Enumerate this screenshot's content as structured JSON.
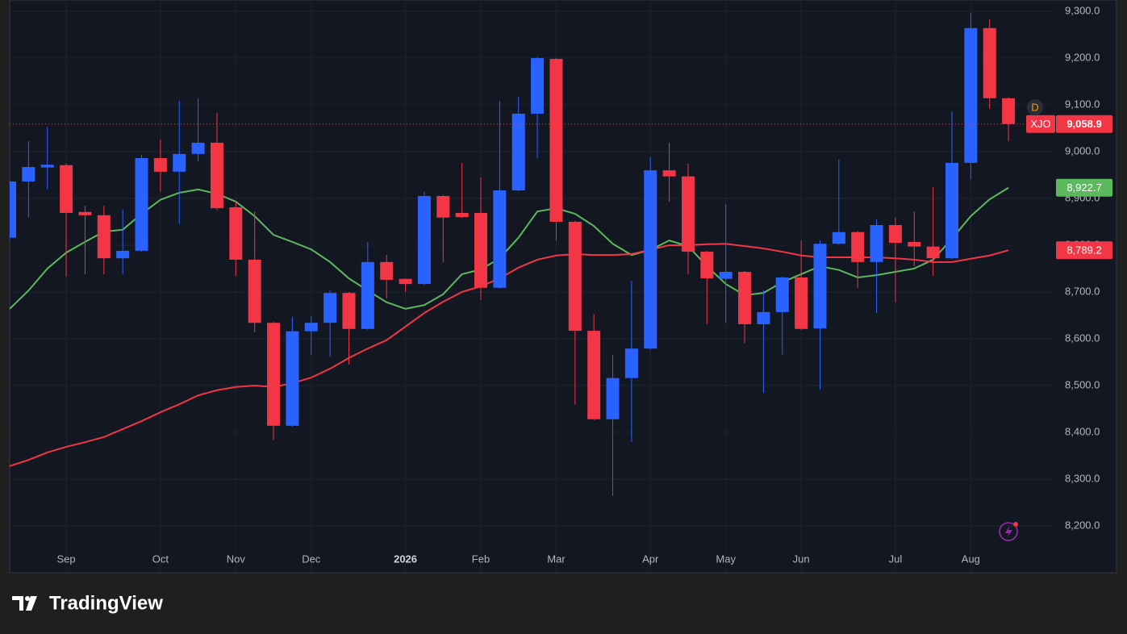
{
  "chart_data": {
    "type": "candlestick",
    "symbol": "XJO",
    "badge": "D",
    "watermark": "TradingView",
    "categories": [
      null,
      null,
      null,
      null,
      null,
      null,
      null,
      null,
      null,
      null,
      null,
      null,
      null,
      null,
      null,
      null,
      null,
      null,
      null,
      null,
      null,
      null,
      null,
      null,
      null,
      null,
      null,
      null,
      null,
      null,
      null,
      null,
      null,
      null,
      null,
      null,
      null,
      null,
      null,
      null,
      null,
      null,
      null,
      null,
      null,
      null,
      null,
      null,
      null,
      null,
      null,
      null,
      null,
      null
    ],
    "open": [
      8816,
      8936,
      8966,
      8971,
      8871,
      8864,
      8772,
      8788,
      8986,
      8957,
      8995,
      9019,
      8881,
      8769,
      8634,
      8414,
      8616,
      8634,
      8698,
      8621,
      8764,
      8728,
      8717,
      8905,
      8869,
      8869,
      8709,
      8917,
      9081,
      9198,
      8850,
      8617,
      8428,
      8516,
      8579,
      8960,
      8947,
      8786,
      8728,
      8743,
      8631,
      8657,
      8731,
      8622,
      8803,
      8828,
      8764,
      8843,
      8807,
      8797,
      8772,
      8976,
      9264,
      9114
    ],
    "high": [
      8940,
      9022,
      9053,
      8975,
      8884,
      8884,
      8876,
      8993,
      9026,
      9109,
      9114,
      9083,
      8893,
      8872,
      8636,
      8647,
      8648,
      8703,
      8700,
      8807,
      8779,
      8729,
      8914,
      8907,
      8976,
      8945,
      9109,
      9117,
      9202,
      9200,
      8852,
      8652,
      8566,
      8724,
      8988,
      9019,
      8974,
      8788,
      8888,
      8745,
      8703,
      8733,
      8810,
      8810,
      8983,
      8830,
      8855,
      8859,
      8872,
      8924,
      9086,
      9297,
      9283,
      9116
    ],
    "low": [
      8810,
      8859,
      8919,
      8733,
      8738,
      8738,
      8738,
      8786,
      8914,
      8845,
      8979,
      8875,
      8734,
      8614,
      8384,
      8412,
      8566,
      8562,
      8545,
      8619,
      8686,
      8700,
      8715,
      8764,
      8858,
      8683,
      8707,
      8915,
      8986,
      8810,
      8459,
      8426,
      8264,
      8379,
      8577,
      8893,
      8738,
      8631,
      8634,
      8591,
      8484,
      8566,
      8619,
      8491,
      8801,
      8709,
      8655,
      8678,
      8755,
      8734,
      8770,
      8941,
      9091,
      9022
    ],
    "close": [
      8936,
      8967,
      8972,
      8869,
      8864,
      8772,
      8788,
      8986,
      8957,
      8995,
      9019,
      8879,
      8769,
      8634,
      8414,
      8616,
      8634,
      8698,
      8621,
      8764,
      8726,
      8717,
      8905,
      8859,
      8860,
      8709,
      8917,
      9081,
      9200,
      8850,
      8617,
      8428,
      8516,
      8579,
      8960,
      8947,
      8786,
      8729,
      8743,
      8631,
      8657,
      8731,
      8621,
      8803,
      8828,
      8764,
      8843,
      8805,
      8797,
      8772,
      8976,
      9264,
      9114,
      9058.9
    ],
    "last_label": "9,058.9",
    "up_color": "#2962ff",
    "down_color": "#f23645",
    "lines": [
      {
        "color": "#5cb85c",
        "last_label": "8,922.7",
        "values": [
          8664,
          8703,
          8750,
          8784,
          8807,
          8829,
          8833,
          8867,
          8897,
          8912,
          8919,
          8910,
          8893,
          8862,
          8822,
          8807,
          8791,
          8764,
          8729,
          8703,
          8678,
          8664,
          8672,
          8695,
          8738,
          8748,
          8772,
          8816,
          8872,
          8879,
          8867,
          8841,
          8803,
          8779,
          8790,
          8810,
          8798,
          8755,
          8717,
          8693,
          8698,
          8721,
          8738,
          8755,
          8747,
          8731,
          8736,
          8743,
          8750,
          8769,
          8814,
          8862,
          8898,
          8922.7
        ]
      },
      {
        "color": "#f23645",
        "last_label": "8,789.2",
        "values": [
          8328,
          8341,
          8357,
          8369,
          8379,
          8390,
          8407,
          8424,
          8443,
          8460,
          8479,
          8490,
          8497,
          8500,
          8497,
          8505,
          8517,
          8536,
          8559,
          8579,
          8597,
          8626,
          8655,
          8679,
          8700,
          8712,
          8729,
          8752,
          8769,
          8778,
          8781,
          8779,
          8779,
          8781,
          8790,
          8800,
          8800,
          8802,
          8803,
          8798,
          8793,
          8786,
          8778,
          8774,
          8774,
          8774,
          8774,
          8772,
          8769,
          8764,
          8764,
          8771,
          8778,
          8789.2
        ]
      }
    ],
    "ylim": [
      8100,
      9324
    ],
    "yticks": [
      {
        "value": 8200,
        "label": "8,200.0"
      },
      {
        "value": 8300,
        "label": "8,300.0"
      },
      {
        "value": 8400,
        "label": "8,400.0"
      },
      {
        "value": 8500,
        "label": "8,500.0"
      },
      {
        "value": 8600,
        "label": "8,600.0"
      },
      {
        "value": 8700,
        "label": "8,700.0"
      },
      {
        "value": 8800,
        "label": "8,800.0"
      },
      {
        "value": 8900,
        "label": "8,900.0"
      },
      {
        "value": 9000,
        "label": "9,000.0"
      },
      {
        "value": 9100,
        "label": "9,100.0"
      },
      {
        "value": 9200,
        "label": "9,200.0"
      },
      {
        "value": 9300,
        "label": "9,300.0"
      }
    ],
    "xticks": [
      {
        "value": 3,
        "label": "Sep"
      },
      {
        "value": 8,
        "label": "Oct"
      },
      {
        "value": 12,
        "label": "Nov"
      },
      {
        "value": 16,
        "label": "Dec"
      },
      {
        "value": 21,
        "label": "2026"
      },
      {
        "value": 25,
        "label": "Feb"
      },
      {
        "value": 29,
        "label": "Mar"
      },
      {
        "value": 34,
        "label": "Apr"
      },
      {
        "value": 38,
        "label": "May"
      },
      {
        "value": 42,
        "label": "Jun"
      },
      {
        "value": 47,
        "label": "Jul"
      },
      {
        "value": 51,
        "label": "Aug"
      }
    ],
    "grid": true
  }
}
